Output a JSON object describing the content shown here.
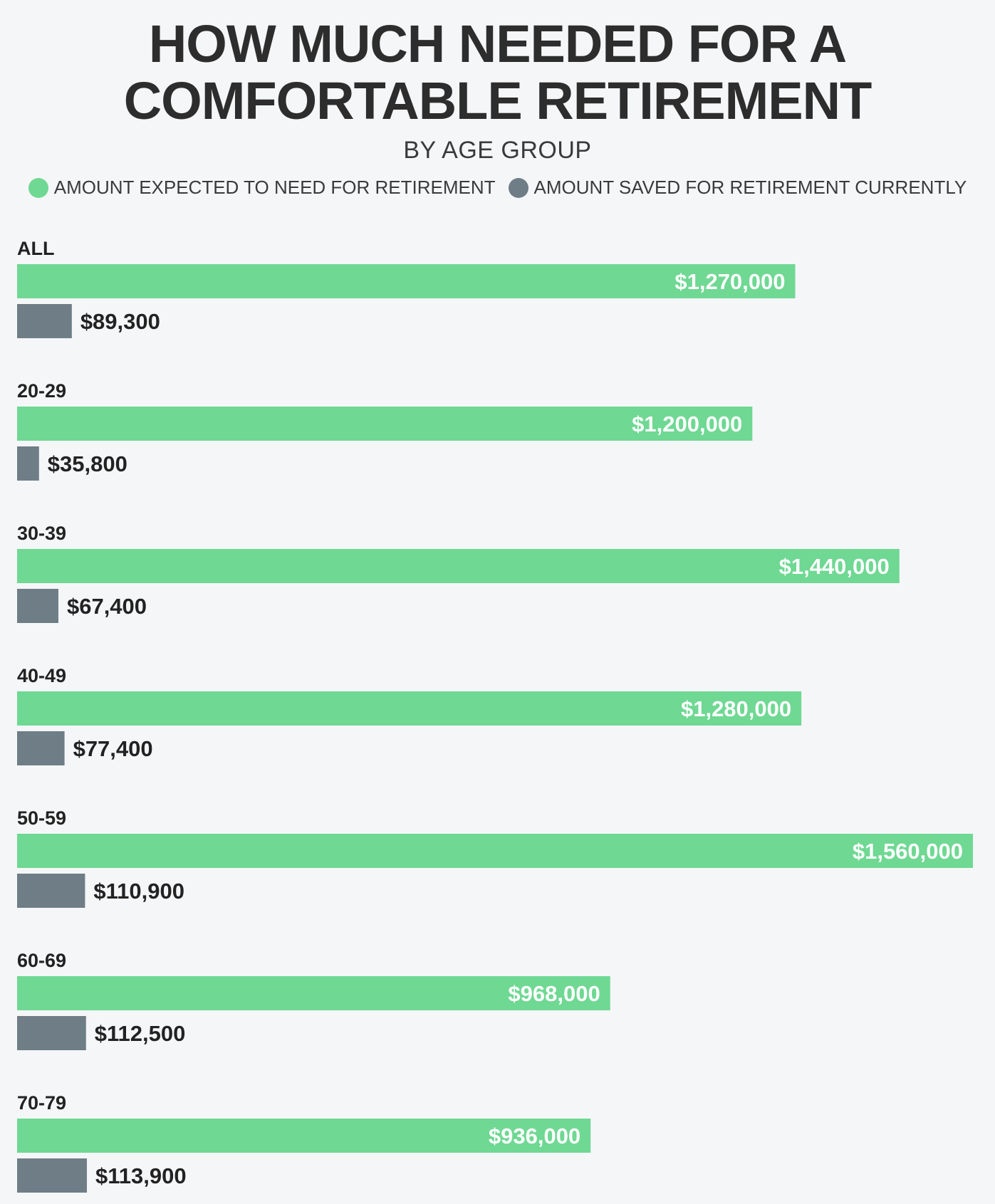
{
  "title_line1": "HOW MUCH NEEDED FOR A",
  "title_line2": "COMFORTABLE RETIREMENT",
  "subtitle": "BY AGE GROUP",
  "legend": [
    {
      "label": "AMOUNT EXPECTED TO NEED FOR RETIREMENT",
      "color": "#6fd893"
    },
    {
      "label": "AMOUNT SAVED FOR RETIREMENT CURRENTLY",
      "color": "#6e7d86"
    }
  ],
  "chart_data": {
    "type": "bar",
    "orientation": "horizontal",
    "title": "HOW MUCH NEEDED FOR A COMFORTABLE RETIREMENT",
    "subtitle": "BY AGE GROUP",
    "categories": [
      "ALL",
      "20-29",
      "30-39",
      "40-49",
      "50-59",
      "60-69",
      "70-79"
    ],
    "series": [
      {
        "name": "AMOUNT EXPECTED TO NEED FOR RETIREMENT",
        "color": "#6fd893",
        "values": [
          1270000,
          1200000,
          1440000,
          1280000,
          1560000,
          968000,
          936000
        ],
        "labels": [
          "$1,270,000",
          "$1,200,000",
          "$1,440,000",
          "$1,280,000",
          "$1,560,000",
          "$968,000",
          "$936,000"
        ]
      },
      {
        "name": "AMOUNT SAVED FOR RETIREMENT CURRENTLY",
        "color": "#6e7d86",
        "values": [
          89300,
          35800,
          67400,
          77400,
          110900,
          112500,
          113900
        ],
        "labels": [
          "$89,300",
          "$35,800",
          "$67,400",
          "$77,400",
          "$110,900",
          "$112,500",
          "$113,900"
        ]
      }
    ],
    "xlim": [
      0,
      1560000
    ],
    "grid": false,
    "legend_position": "top"
  }
}
